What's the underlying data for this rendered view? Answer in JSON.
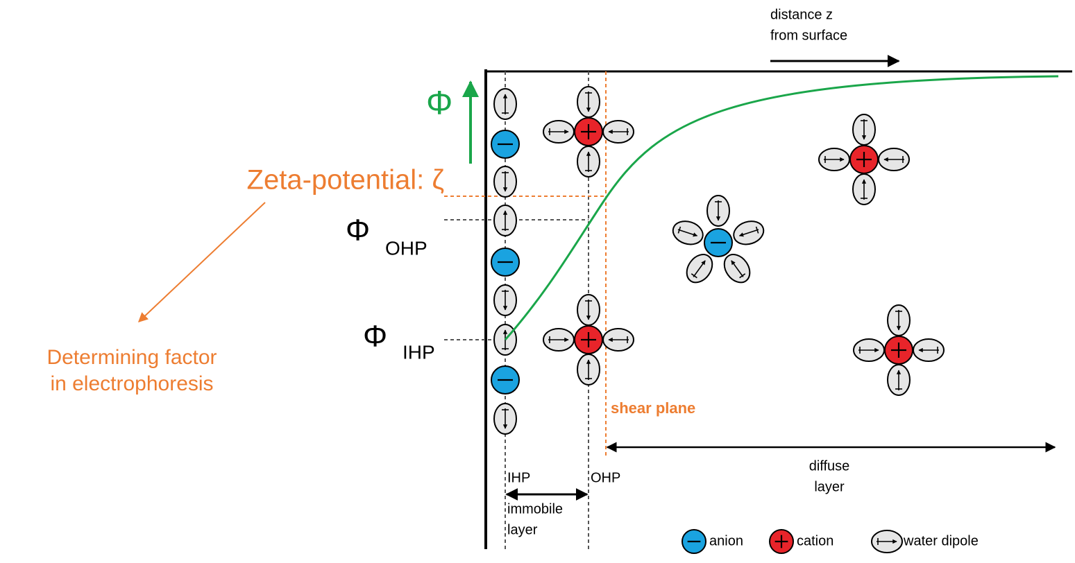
{
  "axis": {
    "distance_lines": [
      "distance z",
      "from surface"
    ],
    "potential_symbol": "Φ"
  },
  "potential_levels": [
    {
      "symbol": "Φ",
      "subscript": "OHP"
    },
    {
      "symbol": "Φ",
      "subscript": "IHP"
    }
  ],
  "zeta": {
    "label": "Zeta-potential: ζ",
    "note_lines": [
      "Determining factor",
      "in electrophoresis"
    ]
  },
  "planes": {
    "shear": "shear plane",
    "ihp": "IHP",
    "ohp": "OHP",
    "immobile_lines": [
      "immobile",
      "layer"
    ],
    "diffuse_lines": [
      "diffuse",
      "layer"
    ]
  },
  "legend": [
    {
      "label": "anion"
    },
    {
      "label": "cation"
    },
    {
      "label": "water dipole"
    }
  ]
}
